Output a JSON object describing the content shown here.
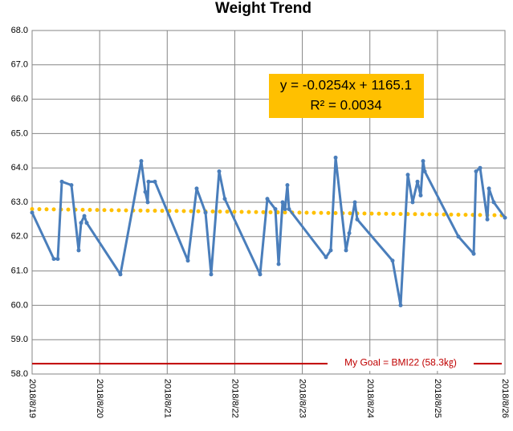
{
  "chart_data": {
    "type": "line",
    "title": "Weight Trend",
    "x": [
      43331.0,
      43331.321,
      43331.38,
      43331.44,
      43331.582,
      43331.689,
      43331.725,
      43331.773,
      43331.808,
      43332.307,
      43332.616,
      43332.676,
      43332.711,
      43332.723,
      43332.818,
      43333.306,
      43333.436,
      43333.567,
      43333.65,
      43333.769,
      43333.852,
      43334.375,
      43334.482,
      43334.601,
      43334.649,
      43334.708,
      43334.744,
      43334.779,
      43334.803,
      43335.35,
      43335.421,
      43335.493,
      43335.647,
      43335.695,
      43335.778,
      43335.813,
      43336.336,
      43336.455,
      43336.562,
      43336.633,
      43336.705,
      43336.752,
      43336.788,
      43336.812,
      43337.311,
      43337.537,
      43337.572,
      43337.632,
      43337.739,
      43337.763,
      43337.834,
      43338.0
    ],
    "series": [
      {
        "color": "#4a7ebb",
        "values": [
          62.7,
          61.35,
          61.35,
          63.6,
          63.5,
          61.6,
          62.4,
          62.6,
          62.4,
          60.9,
          64.2,
          63.3,
          63.0,
          63.6,
          63.6,
          61.3,
          63.4,
          62.7,
          60.9,
          63.9,
          63.1,
          60.9,
          63.1,
          62.8,
          61.2,
          63.0,
          62.8,
          63.5,
          62.8,
          61.4,
          61.6,
          64.3,
          61.6,
          62.1,
          63.0,
          62.5,
          61.3,
          60.0,
          63.8,
          63.0,
          63.6,
          63.2,
          64.2,
          63.9,
          62.0,
          61.5,
          63.9,
          64.0,
          62.5,
          63.4,
          63.0,
          62.55
        ]
      }
    ],
    "trendline": {
      "x": [
        43331,
        43338
      ],
      "values": [
        62.8,
        62.62
      ],
      "color": "#ffc000",
      "equation": "y = -0.0254x + 1165.1",
      "r_squared": "R² = 0.0034",
      "box_color": "#ffc000"
    },
    "goal": {
      "value": 58.3,
      "label": "My Goal = BMI22 (58.3㎏)",
      "color": "#c00000"
    },
    "xlim": [
      43331,
      43338
    ],
    "xticks": [
      {
        "value": 43331,
        "label": "2018/8/19"
      },
      {
        "value": 43332,
        "label": "2018/8/20"
      },
      {
        "value": 43333,
        "label": "2018/8/21"
      },
      {
        "value": 43334,
        "label": "2018/8/22"
      },
      {
        "value": 43335,
        "label": "2018/8/23"
      },
      {
        "value": 43336,
        "label": "2018/8/24"
      },
      {
        "value": 43337,
        "label": "2018/8/25"
      },
      {
        "value": 43338,
        "label": "2018/8/26"
      }
    ],
    "ylim": [
      58,
      68
    ],
    "yticks": [
      {
        "value": 58,
        "label": "58.0"
      },
      {
        "value": 59,
        "label": "59.0"
      },
      {
        "value": 60,
        "label": "60.0"
      },
      {
        "value": 61,
        "label": "61.0"
      },
      {
        "value": 62,
        "label": "62.0"
      },
      {
        "value": 63,
        "label": "63.0"
      },
      {
        "value": 64,
        "label": "64.0"
      },
      {
        "value": 65,
        "label": "65.0"
      },
      {
        "value": 66,
        "label": "66.0"
      },
      {
        "value": 67,
        "label": "67.0"
      },
      {
        "value": 68,
        "label": "68.0"
      }
    ],
    "grid": true
  }
}
